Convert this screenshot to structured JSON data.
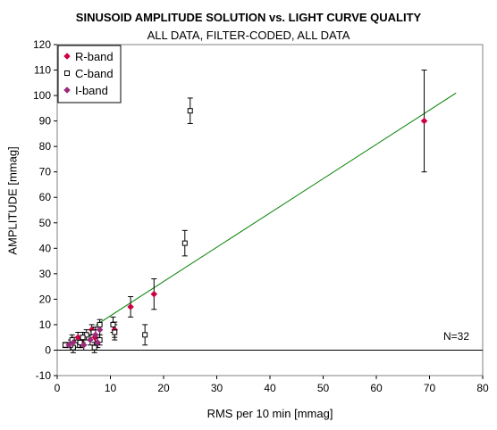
{
  "title": "SINUSOID AMPLITUDE SOLUTION vs. LIGHT CURVE QUALITY",
  "subtitle": "ALL DATA, FILTER-CODED, ALL DATA",
  "annotation": "N=32",
  "chart_data": {
    "type": "scatter",
    "title": "SINUSOID AMPLITUDE SOLUTION vs. LIGHT CURVE QUALITY",
    "subtitle": "ALL DATA, FILTER-CODED, ALL DATA",
    "xlabel": "RMS per 10 min [mmag]",
    "ylabel": "AMPLITUDE [mmag]",
    "xlim": [
      0,
      80
    ],
    "ylim": [
      -10,
      120
    ],
    "xticks": [
      0,
      10,
      20,
      30,
      40,
      50,
      60,
      70,
      80
    ],
    "yticks": [
      -10,
      0,
      10,
      20,
      30,
      40,
      50,
      60,
      70,
      80,
      90,
      100,
      110,
      120
    ],
    "grid": false,
    "legend_position": "top-left",
    "series": [
      {
        "name": "R-band",
        "marker": "diamond",
        "color": "#cc0044",
        "points": [
          {
            "x": 69,
            "y": 90,
            "err": 20
          },
          {
            "x": 18.2,
            "y": 22,
            "err": 6
          },
          {
            "x": 13.8,
            "y": 17,
            "err": 4
          },
          {
            "x": 10.8,
            "y": 8,
            "err": 3
          },
          {
            "x": 7.1,
            "y": 5,
            "err": 3
          },
          {
            "x": 6.5,
            "y": 8,
            "err": 2
          },
          {
            "x": 4.5,
            "y": 3,
            "err": 2
          },
          {
            "x": 3.9,
            "y": 5,
            "err": 2
          }
        ]
      },
      {
        "name": "C-band",
        "marker": "square",
        "color": "#000000",
        "points": [
          {
            "x": 25,
            "y": 94,
            "err": 5
          },
          {
            "x": 24,
            "y": 42,
            "err": 5
          },
          {
            "x": 16.5,
            "y": 6,
            "err": 4
          },
          {
            "x": 10.5,
            "y": 10,
            "err": 3
          },
          {
            "x": 10.8,
            "y": 7,
            "err": 3
          },
          {
            "x": 8.0,
            "y": 10,
            "err": 2
          },
          {
            "x": 8.0,
            "y": 4,
            "err": 2
          },
          {
            "x": 7.0,
            "y": 1,
            "err": 2
          },
          {
            "x": 6.8,
            "y": 7,
            "err": 2
          },
          {
            "x": 5.5,
            "y": 6,
            "err": 2
          },
          {
            "x": 4.8,
            "y": 5,
            "err": 2
          },
          {
            "x": 4.3,
            "y": 3,
            "err": 2
          },
          {
            "x": 3.4,
            "y": 2,
            "err": 2
          },
          {
            "x": 3.0,
            "y": 1,
            "err": 2
          },
          {
            "x": 2.8,
            "y": 4,
            "err": 2
          },
          {
            "x": 2.5,
            "y": 2,
            "err": 2
          },
          {
            "x": 1.5,
            "y": 2,
            "err": 1
          }
        ]
      },
      {
        "name": "I-band",
        "marker": "diamond",
        "color": "#9b2a7a",
        "points": [
          {
            "x": 7.2,
            "y": 6,
            "err": 3
          },
          {
            "x": 6.2,
            "y": 4,
            "err": 2
          },
          {
            "x": 5.0,
            "y": 2,
            "err": 2
          },
          {
            "x": 3.0,
            "y": 3,
            "err": 2
          },
          {
            "x": 2.2,
            "y": 2,
            "err": 1
          },
          {
            "x": 8.0,
            "y": 8,
            "err": 2
          },
          {
            "x": 7.6,
            "y": 3,
            "err": 2
          }
        ]
      }
    ],
    "fit_line": {
      "color": "#008000",
      "x": [
        7.2,
        75
      ],
      "y": [
        9.7,
        101
      ]
    },
    "zero_line": {
      "y": 0,
      "color": "#000000"
    }
  }
}
